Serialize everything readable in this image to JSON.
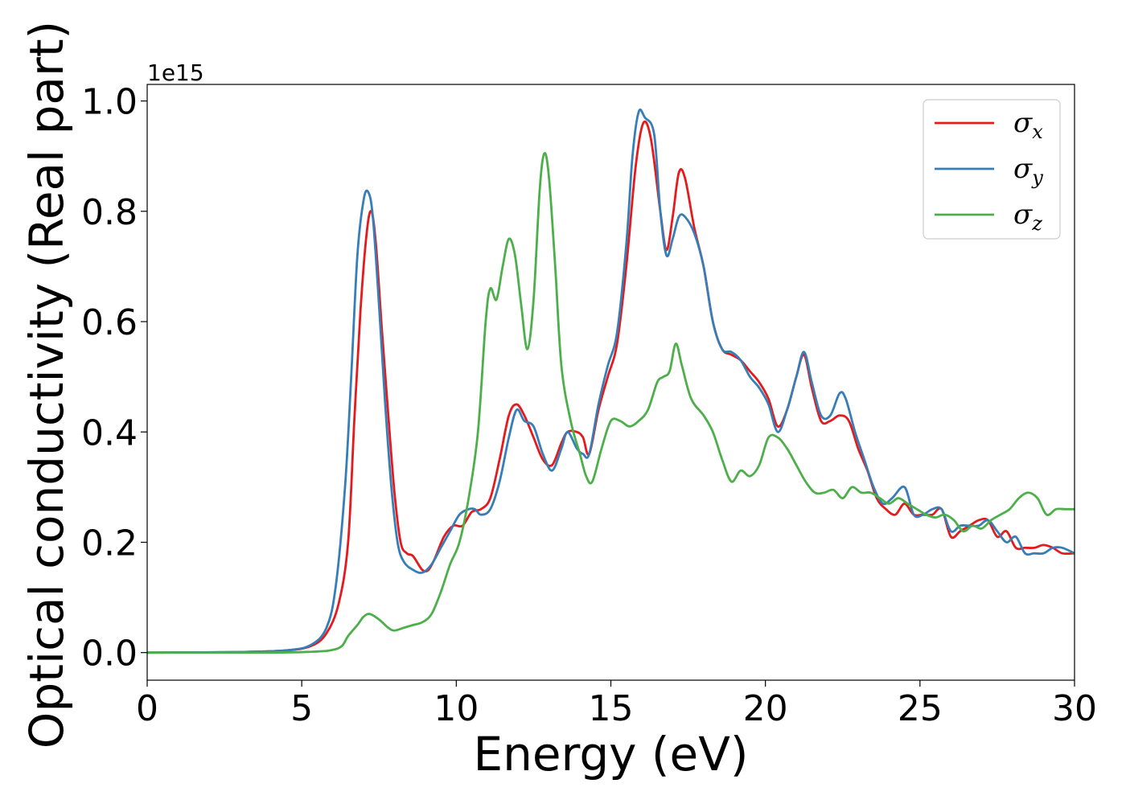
{
  "chart_data": {
    "type": "line",
    "title": "",
    "xlabel": "Energy (eV)",
    "ylabel": "Optical conductivity (Real part)",
    "y_offset_label": "1e15",
    "xlim": [
      0,
      30
    ],
    "ylim": [
      -0.05,
      1.03
    ],
    "x_ticks": [
      0,
      5,
      10,
      15,
      20,
      25,
      30
    ],
    "x_tick_labels": [
      "0",
      "5",
      "10",
      "15",
      "20",
      "25",
      "30"
    ],
    "y_ticks": [
      0.0,
      0.2,
      0.4,
      0.6,
      0.8,
      1.0
    ],
    "y_tick_labels": [
      "0.0",
      "0.2",
      "0.4",
      "0.6",
      "0.8",
      "1.0"
    ],
    "grid": false,
    "legend_position": "top-right",
    "series": [
      {
        "name": "σx",
        "legend_symbol": "σ",
        "legend_sub": "x",
        "color": "#e41a1c",
        "x": [
          0,
          3,
          4.5,
          5.3,
          5.8,
          6.2,
          6.5,
          6.7,
          6.9,
          7.1,
          7.25,
          7.4,
          7.6,
          7.8,
          8.0,
          8.2,
          8.4,
          8.6,
          8.9,
          9.1,
          9.3,
          9.6,
          9.9,
          10.2,
          10.5,
          10.8,
          11.1,
          11.4,
          11.7,
          11.95,
          12.2,
          12.5,
          12.8,
          13.1,
          13.4,
          13.6,
          13.9,
          14.1,
          14.3,
          14.6,
          14.9,
          15.2,
          15.5,
          15.8,
          16.05,
          16.3,
          16.6,
          16.8,
          17.0,
          17.2,
          17.4,
          17.7,
          18.0,
          18.3,
          18.6,
          18.9,
          19.2,
          19.5,
          19.8,
          20.1,
          20.4,
          20.7,
          21.0,
          21.25,
          21.5,
          21.8,
          22.1,
          22.4,
          22.7,
          23.0,
          23.3,
          23.6,
          23.9,
          24.2,
          24.5,
          24.8,
          25.1,
          25.4,
          25.7,
          26.0,
          26.3,
          26.6,
          26.9,
          27.2,
          27.5,
          27.8,
          28.1,
          28.4,
          28.7,
          29.0,
          29.3,
          29.6,
          30.0
        ],
        "y": [
          0.0,
          0.001,
          0.004,
          0.012,
          0.035,
          0.09,
          0.2,
          0.42,
          0.62,
          0.76,
          0.8,
          0.74,
          0.58,
          0.43,
          0.29,
          0.2,
          0.18,
          0.175,
          0.15,
          0.15,
          0.17,
          0.21,
          0.23,
          0.23,
          0.255,
          0.26,
          0.28,
          0.35,
          0.43,
          0.45,
          0.43,
          0.39,
          0.35,
          0.34,
          0.38,
          0.4,
          0.4,
          0.39,
          0.36,
          0.44,
          0.5,
          0.56,
          0.7,
          0.88,
          0.96,
          0.93,
          0.8,
          0.73,
          0.79,
          0.87,
          0.86,
          0.77,
          0.7,
          0.6,
          0.55,
          0.54,
          0.53,
          0.51,
          0.49,
          0.46,
          0.41,
          0.44,
          0.5,
          0.54,
          0.48,
          0.42,
          0.42,
          0.43,
          0.42,
          0.37,
          0.33,
          0.28,
          0.26,
          0.25,
          0.27,
          0.25,
          0.25,
          0.25,
          0.26,
          0.21,
          0.22,
          0.23,
          0.24,
          0.24,
          0.21,
          0.22,
          0.19,
          0.19,
          0.19,
          0.195,
          0.19,
          0.18,
          0.18
        ]
      },
      {
        "name": "σy",
        "legend_symbol": "σ",
        "legend_sub": "y",
        "color": "#377eb8",
        "x": [
          0,
          3,
          4.5,
          5.3,
          5.8,
          6.1,
          6.4,
          6.6,
          6.8,
          7.0,
          7.15,
          7.3,
          7.5,
          7.7,
          7.9,
          8.1,
          8.3,
          8.6,
          8.9,
          9.2,
          9.5,
          9.8,
          10.1,
          10.4,
          10.6,
          10.8,
          11.1,
          11.4,
          11.7,
          11.95,
          12.2,
          12.5,
          12.8,
          13.1,
          13.4,
          13.6,
          13.9,
          14.1,
          14.3,
          14.6,
          14.9,
          15.2,
          15.5,
          15.7,
          15.9,
          16.1,
          16.4,
          16.6,
          16.8,
          17.0,
          17.2,
          17.4,
          17.7,
          18.0,
          18.3,
          18.6,
          18.9,
          19.2,
          19.5,
          19.8,
          20.1,
          20.4,
          20.7,
          21.0,
          21.25,
          21.5,
          21.8,
          22.1,
          22.4,
          22.6,
          22.9,
          23.2,
          23.5,
          23.8,
          24.1,
          24.5,
          24.8,
          25.1,
          25.4,
          25.7,
          26.0,
          26.3,
          26.6,
          26.9,
          27.2,
          27.5,
          27.8,
          28.1,
          28.4,
          28.7,
          29.0,
          29.3,
          29.6,
          30.0
        ],
        "y": [
          0.0,
          0.001,
          0.004,
          0.014,
          0.045,
          0.12,
          0.3,
          0.5,
          0.72,
          0.82,
          0.835,
          0.79,
          0.63,
          0.45,
          0.3,
          0.2,
          0.165,
          0.15,
          0.145,
          0.16,
          0.19,
          0.22,
          0.25,
          0.26,
          0.26,
          0.25,
          0.26,
          0.31,
          0.39,
          0.44,
          0.42,
          0.41,
          0.36,
          0.33,
          0.37,
          0.4,
          0.37,
          0.36,
          0.36,
          0.45,
          0.52,
          0.58,
          0.74,
          0.9,
          0.98,
          0.97,
          0.94,
          0.8,
          0.72,
          0.75,
          0.79,
          0.79,
          0.76,
          0.7,
          0.6,
          0.55,
          0.545,
          0.53,
          0.5,
          0.48,
          0.45,
          0.4,
          0.44,
          0.5,
          0.545,
          0.49,
          0.43,
          0.43,
          0.47,
          0.46,
          0.4,
          0.35,
          0.3,
          0.27,
          0.28,
          0.3,
          0.25,
          0.25,
          0.26,
          0.26,
          0.22,
          0.23,
          0.23,
          0.23,
          0.24,
          0.22,
          0.2,
          0.21,
          0.18,
          0.18,
          0.18,
          0.19,
          0.19,
          0.18
        ]
      },
      {
        "name": "σz",
        "legend_symbol": "σ",
        "legend_sub": "z",
        "color": "#4daf4a",
        "x": [
          0,
          4,
          5.5,
          6.0,
          6.3,
          6.5,
          6.8,
          7.0,
          7.2,
          7.5,
          7.8,
          8.0,
          8.3,
          8.6,
          8.9,
          9.2,
          9.5,
          9.8,
          10.1,
          10.4,
          10.7,
          10.95,
          11.1,
          11.3,
          11.5,
          11.7,
          11.9,
          12.1,
          12.3,
          12.5,
          12.7,
          12.85,
          13.0,
          13.2,
          13.4,
          13.7,
          14.0,
          14.2,
          14.4,
          14.7,
          15.0,
          15.3,
          15.6,
          15.9,
          16.2,
          16.5,
          16.7,
          16.9,
          17.1,
          17.3,
          17.6,
          18.0,
          18.3,
          18.6,
          18.9,
          19.2,
          19.5,
          19.8,
          20.1,
          20.4,
          20.7,
          21.0,
          21.3,
          21.6,
          21.9,
          22.2,
          22.5,
          22.8,
          23.1,
          23.4,
          23.7,
          24.0,
          24.3,
          24.6,
          24.9,
          25.2,
          25.5,
          25.8,
          26.1,
          26.4,
          26.7,
          27.0,
          27.3,
          27.6,
          27.9,
          28.2,
          28.5,
          28.8,
          29.1,
          29.4,
          29.7,
          30.0
        ],
        "y": [
          0.0,
          0.0,
          0.002,
          0.005,
          0.012,
          0.03,
          0.05,
          0.065,
          0.07,
          0.06,
          0.045,
          0.04,
          0.045,
          0.05,
          0.055,
          0.07,
          0.11,
          0.16,
          0.2,
          0.28,
          0.4,
          0.6,
          0.66,
          0.64,
          0.7,
          0.75,
          0.72,
          0.63,
          0.55,
          0.64,
          0.84,
          0.905,
          0.86,
          0.7,
          0.52,
          0.42,
          0.36,
          0.32,
          0.31,
          0.37,
          0.42,
          0.42,
          0.41,
          0.42,
          0.44,
          0.49,
          0.5,
          0.51,
          0.56,
          0.52,
          0.46,
          0.43,
          0.4,
          0.35,
          0.31,
          0.33,
          0.32,
          0.34,
          0.39,
          0.39,
          0.37,
          0.34,
          0.31,
          0.29,
          0.29,
          0.295,
          0.28,
          0.3,
          0.29,
          0.29,
          0.28,
          0.27,
          0.28,
          0.27,
          0.26,
          0.25,
          0.245,
          0.25,
          0.24,
          0.22,
          0.23,
          0.225,
          0.24,
          0.25,
          0.26,
          0.28,
          0.29,
          0.28,
          0.25,
          0.26,
          0.26,
          0.26
        ]
      }
    ]
  }
}
